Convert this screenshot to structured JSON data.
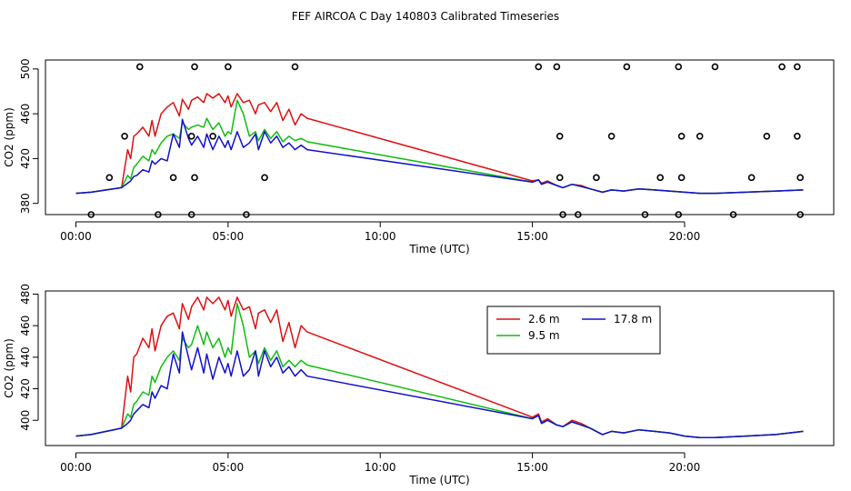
{
  "title": "FEF AIRCOA C  Day 140803  Calibrated Timeseries",
  "colors": {
    "s1": "#dd1111",
    "s2": "#11bb11",
    "s3": "#1111cc",
    "axis": "#000000"
  },
  "chart_data": [
    {
      "type": "line",
      "xlabel": "Time (UTC)",
      "ylabel": "CO2 (ppm)",
      "xlim": [
        -1.0,
        24.9
      ],
      "ylim": [
        370,
        508
      ],
      "xticks": [
        0,
        5,
        10,
        15,
        20
      ],
      "xticklabels": [
        "00:00",
        "05:00",
        "10:00",
        "15:00",
        "20:00"
      ],
      "yticks": [
        380,
        420,
        460,
        500
      ],
      "yticklabels": [
        "380",
        "420",
        "460",
        "500"
      ],
      "legend": null,
      "series": [
        {
          "name": "2.6 m",
          "color": "#dd1111",
          "x": [
            0,
            0.5,
            1.0,
            1.5,
            1.7,
            1.8,
            1.9,
            2.0,
            2.2,
            2.4,
            2.5,
            2.6,
            2.8,
            3.0,
            3.2,
            3.4,
            3.5,
            3.7,
            3.8,
            4.0,
            4.2,
            4.3,
            4.5,
            4.7,
            4.9,
            5.0,
            5.1,
            5.3,
            5.5,
            5.7,
            5.9,
            6.0,
            6.2,
            6.4,
            6.6,
            6.8,
            7.0,
            7.2,
            7.4,
            7.6,
            15.0,
            15.2,
            15.3,
            15.5,
            15.8,
            16.0,
            16.3,
            16.6,
            16.9,
            17.3,
            17.6,
            18.0,
            18.5,
            19.0,
            19.5,
            20.0,
            20.5,
            21.0,
            22.0,
            23.0,
            23.9
          ],
          "y": [
            389,
            390,
            392,
            394,
            428,
            420,
            440,
            442,
            448,
            440,
            454,
            440,
            460,
            466,
            470,
            458,
            473,
            464,
            472,
            475,
            470,
            478,
            474,
            478,
            470,
            476,
            466,
            478,
            470,
            472,
            460,
            468,
            470,
            462,
            470,
            454,
            464,
            450,
            460,
            456,
            400,
            401,
            398,
            400,
            396,
            394,
            397,
            396,
            393,
            390,
            392,
            391,
            393,
            392,
            391,
            390,
            389,
            389,
            390,
            391,
            392
          ]
        },
        {
          "name": "9.5 m",
          "color": "#11bb11",
          "x": [
            0,
            0.5,
            1.0,
            1.5,
            1.7,
            1.8,
            1.9,
            2.0,
            2.2,
            2.4,
            2.5,
            2.6,
            2.8,
            3.0,
            3.2,
            3.4,
            3.5,
            3.7,
            3.8,
            4.0,
            4.2,
            4.3,
            4.5,
            4.7,
            4.9,
            5.0,
            5.1,
            5.3,
            5.5,
            5.7,
            5.9,
            6.0,
            6.2,
            6.4,
            6.6,
            6.8,
            7.0,
            7.2,
            7.4,
            7.6,
            15.0,
            15.2,
            15.3,
            15.5,
            15.8,
            16.0,
            16.3,
            16.6,
            16.9,
            17.3,
            17.6,
            18.0,
            18.5,
            19.0,
            19.5,
            20.0,
            20.5,
            21.0,
            22.0,
            23.0,
            23.9
          ],
          "y": [
            389,
            390,
            392,
            394,
            405,
            402,
            412,
            415,
            422,
            418,
            428,
            424,
            434,
            440,
            442,
            438,
            452,
            446,
            448,
            450,
            448,
            456,
            446,
            452,
            440,
            444,
            442,
            472,
            460,
            440,
            444,
            436,
            446,
            438,
            444,
            435,
            440,
            436,
            438,
            435,
            399,
            401,
            397,
            399,
            396,
            394,
            397,
            395,
            393,
            390,
            392,
            391,
            393,
            392,
            391,
            390,
            389,
            389,
            390,
            391,
            392
          ]
        },
        {
          "name": "17.8 m",
          "color": "#1111cc",
          "x": [
            0,
            0.5,
            1.0,
            1.5,
            1.7,
            1.8,
            1.9,
            2.0,
            2.2,
            2.4,
            2.5,
            2.6,
            2.8,
            3.0,
            3.2,
            3.4,
            3.5,
            3.7,
            3.8,
            4.0,
            4.2,
            4.3,
            4.5,
            4.7,
            4.9,
            5.0,
            5.1,
            5.3,
            5.5,
            5.7,
            5.9,
            6.0,
            6.2,
            6.4,
            6.6,
            6.8,
            7.0,
            7.2,
            7.4,
            7.6,
            15.0,
            15.2,
            15.3,
            15.5,
            15.8,
            16.0,
            16.3,
            16.6,
            16.9,
            17.3,
            17.6,
            18.0,
            18.5,
            19.0,
            19.5,
            20.0,
            20.5,
            21.0,
            22.0,
            23.0,
            23.9
          ],
          "y": [
            389,
            390,
            392,
            394,
            398,
            400,
            404,
            405,
            410,
            408,
            418,
            415,
            420,
            418,
            442,
            430,
            455,
            438,
            432,
            440,
            430,
            442,
            428,
            440,
            430,
            436,
            428,
            444,
            430,
            434,
            442,
            428,
            444,
            434,
            440,
            430,
            434,
            428,
            432,
            428,
            399,
            401,
            397,
            399,
            396,
            394,
            397,
            395,
            393,
            390,
            392,
            391,
            393,
            392,
            391,
            390,
            389,
            389,
            390,
            391,
            392
          ]
        }
      ],
      "calibration_points": {
        "x": [
          0.5,
          1.1,
          1.6,
          2.1,
          2.7,
          3.2,
          3.8,
          3.8,
          3.9,
          3.9,
          4.5,
          5.0,
          5.6,
          6.2,
          7.2,
          15.2,
          15.8,
          15.9,
          15.9,
          16.0,
          16.5,
          17.1,
          17.6,
          18.1,
          18.7,
          19.2,
          19.8,
          19.8,
          19.9,
          19.9,
          20.5,
          21.0,
          21.6,
          22.2,
          22.7,
          23.2,
          23.7,
          23.7,
          23.8,
          23.8
        ],
        "y": [
          370,
          403,
          440,
          502,
          370,
          403,
          440,
          370,
          502,
          403,
          440,
          502,
          370,
          403,
          502,
          502,
          502,
          403,
          440,
          370,
          370,
          403,
          440,
          502,
          370,
          403,
          502,
          370,
          440,
          403,
          440,
          502,
          370,
          403,
          440,
          502,
          502,
          440,
          403,
          370
        ]
      }
    },
    {
      "type": "line",
      "xlabel": "Time (UTC)",
      "ylabel": "CO2 (ppm)",
      "xlim": [
        -1.0,
        24.9
      ],
      "ylim": [
        384,
        482
      ],
      "xticks": [
        0,
        5,
        10,
        15,
        20
      ],
      "xticklabels": [
        "00:00",
        "05:00",
        "10:00",
        "15:00",
        "20:00"
      ],
      "yticks": [
        400,
        420,
        440,
        460,
        480
      ],
      "yticklabels": [
        "400",
        "420",
        "440",
        "460",
        "480"
      ],
      "legend": {
        "placement": "top-right",
        "entries": [
          "2.6 m",
          "9.5 m",
          "17.8 m"
        ]
      },
      "series": [
        {
          "name": "2.6 m",
          "color": "#dd1111",
          "x": [
            0,
            0.5,
            1.0,
            1.5,
            1.7,
            1.8,
            1.9,
            2.0,
            2.2,
            2.4,
            2.5,
            2.6,
            2.8,
            3.0,
            3.2,
            3.4,
            3.5,
            3.7,
            3.8,
            4.0,
            4.2,
            4.3,
            4.5,
            4.7,
            4.9,
            5.0,
            5.1,
            5.3,
            5.5,
            5.7,
            5.9,
            6.0,
            6.2,
            6.4,
            6.6,
            6.8,
            7.0,
            7.2,
            7.4,
            7.6,
            15.0,
            15.2,
            15.3,
            15.5,
            15.8,
            16.0,
            16.3,
            16.6,
            16.9,
            17.3,
            17.6,
            18.0,
            18.5,
            19.0,
            19.5,
            20.0,
            20.5,
            21.0,
            22.0,
            23.0,
            23.9
          ],
          "y": [
            390,
            391,
            393,
            395,
            428,
            418,
            440,
            442,
            452,
            446,
            458,
            444,
            460,
            466,
            468,
            458,
            474,
            464,
            472,
            478,
            470,
            478,
            474,
            478,
            470,
            476,
            466,
            478,
            470,
            472,
            458,
            468,
            470,
            462,
            470,
            450,
            462,
            446,
            460,
            456,
            402,
            404,
            399,
            401,
            397,
            396,
            400,
            398,
            395,
            391,
            393,
            392,
            394,
            393,
            392,
            390,
            389,
            389,
            390,
            391,
            393
          ]
        },
        {
          "name": "9.5 m",
          "color": "#11bb11",
          "x": [
            0,
            0.5,
            1.0,
            1.5,
            1.7,
            1.8,
            1.9,
            2.0,
            2.2,
            2.4,
            2.5,
            2.6,
            2.8,
            3.0,
            3.2,
            3.4,
            3.5,
            3.7,
            3.8,
            4.0,
            4.2,
            4.3,
            4.5,
            4.7,
            4.9,
            5.0,
            5.1,
            5.3,
            5.5,
            5.7,
            5.9,
            6.0,
            6.2,
            6.4,
            6.6,
            6.8,
            7.0,
            7.2,
            7.4,
            7.6,
            15.0,
            15.2,
            15.3,
            15.5,
            15.8,
            16.0,
            16.3,
            16.6,
            16.9,
            17.3,
            17.6,
            18.0,
            18.5,
            19.0,
            19.5,
            20.0,
            20.5,
            21.0,
            22.0,
            23.0,
            23.9
          ],
          "y": [
            390,
            391,
            393,
            395,
            404,
            402,
            410,
            412,
            418,
            416,
            428,
            424,
            434,
            440,
            444,
            438,
            452,
            446,
            448,
            460,
            448,
            456,
            446,
            452,
            440,
            446,
            442,
            474,
            460,
            440,
            444,
            436,
            446,
            438,
            444,
            434,
            438,
            434,
            438,
            435,
            401,
            403,
            398,
            400,
            397,
            396,
            399,
            397,
            395,
            391,
            393,
            392,
            394,
            393,
            392,
            390,
            389,
            389,
            390,
            391,
            393
          ]
        },
        {
          "name": "17.8 m",
          "color": "#1111cc",
          "x": [
            0,
            0.5,
            1.0,
            1.5,
            1.7,
            1.8,
            1.9,
            2.0,
            2.2,
            2.4,
            2.5,
            2.6,
            2.8,
            3.0,
            3.2,
            3.4,
            3.5,
            3.7,
            3.8,
            4.0,
            4.2,
            4.3,
            4.5,
            4.7,
            4.9,
            5.0,
            5.1,
            5.3,
            5.5,
            5.7,
            5.9,
            6.0,
            6.2,
            6.4,
            6.6,
            6.8,
            7.0,
            7.2,
            7.4,
            7.6,
            15.0,
            15.2,
            15.3,
            15.5,
            15.8,
            16.0,
            16.3,
            16.6,
            16.9,
            17.3,
            17.6,
            18.0,
            18.5,
            19.0,
            19.5,
            20.0,
            20.5,
            21.0,
            22.0,
            23.0,
            23.9
          ],
          "y": [
            390,
            391,
            393,
            395,
            398,
            400,
            404,
            406,
            410,
            408,
            418,
            414,
            422,
            420,
            442,
            430,
            456,
            440,
            432,
            446,
            430,
            442,
            426,
            440,
            430,
            436,
            428,
            444,
            428,
            432,
            444,
            428,
            444,
            434,
            440,
            430,
            434,
            428,
            432,
            428,
            401,
            403,
            398,
            400,
            397,
            396,
            399,
            397,
            395,
            391,
            393,
            392,
            394,
            393,
            392,
            390,
            389,
            389,
            390,
            391,
            393
          ]
        }
      ]
    }
  ]
}
